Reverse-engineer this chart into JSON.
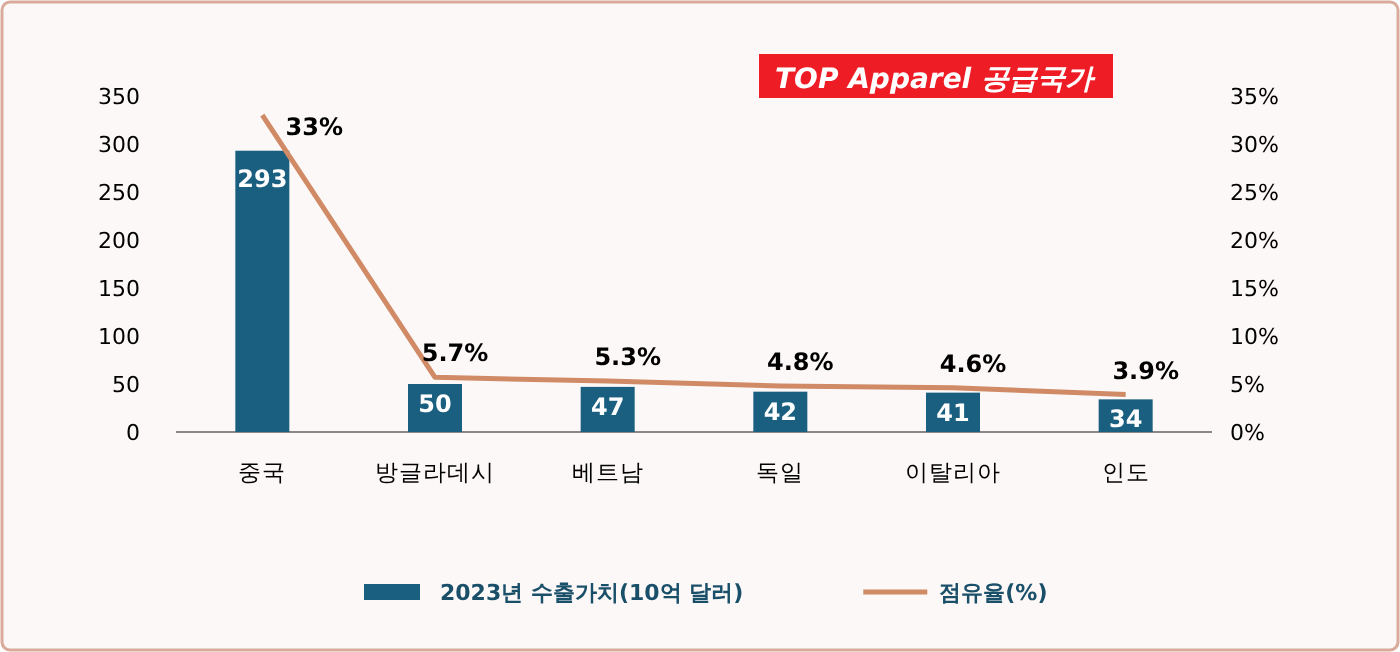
{
  "chart_data": {
    "type": "bar",
    "title": "TOP Apparel 공급국가",
    "categories": [
      "중국",
      "방글라데시",
      "베트남",
      "독일",
      "이탈리아",
      "인도"
    ],
    "series": [
      {
        "name": "2023년 수출가치(10억 달러)",
        "color": "#1a5f7f",
        "values": [
          293,
          50,
          47,
          42,
          41,
          34
        ],
        "value_labels": [
          "293",
          "50",
          "47",
          "42",
          "41",
          "34"
        ]
      },
      {
        "type": "line",
        "name": "점유율(%)",
        "color": "#d08a66",
        "axis": "y2",
        "values": [
          33,
          5.7,
          5.3,
          4.8,
          4.6,
          3.9
        ],
        "value_labels": [
          "33%",
          "5.7%",
          "5.3%",
          "4.8%",
          "4.6%",
          "3.9%"
        ]
      }
    ],
    "ylim": [
      0,
      350
    ],
    "yticks": [
      0,
      50,
      100,
      150,
      200,
      250,
      300,
      350
    ],
    "y2lim": [
      0,
      35
    ],
    "y2ticks": [
      {
        "value": 0,
        "label": "0%"
      },
      {
        "value": 5,
        "label": "5%"
      },
      {
        "value": 10,
        "label": "10%"
      },
      {
        "value": 15,
        "label": "15%"
      },
      {
        "value": 20,
        "label": "20%"
      },
      {
        "value": 25,
        "label": "25%"
      },
      {
        "value": 30,
        "label": "30%"
      },
      {
        "value": 35,
        "label": "35%"
      }
    ],
    "legend": "bottom"
  }
}
